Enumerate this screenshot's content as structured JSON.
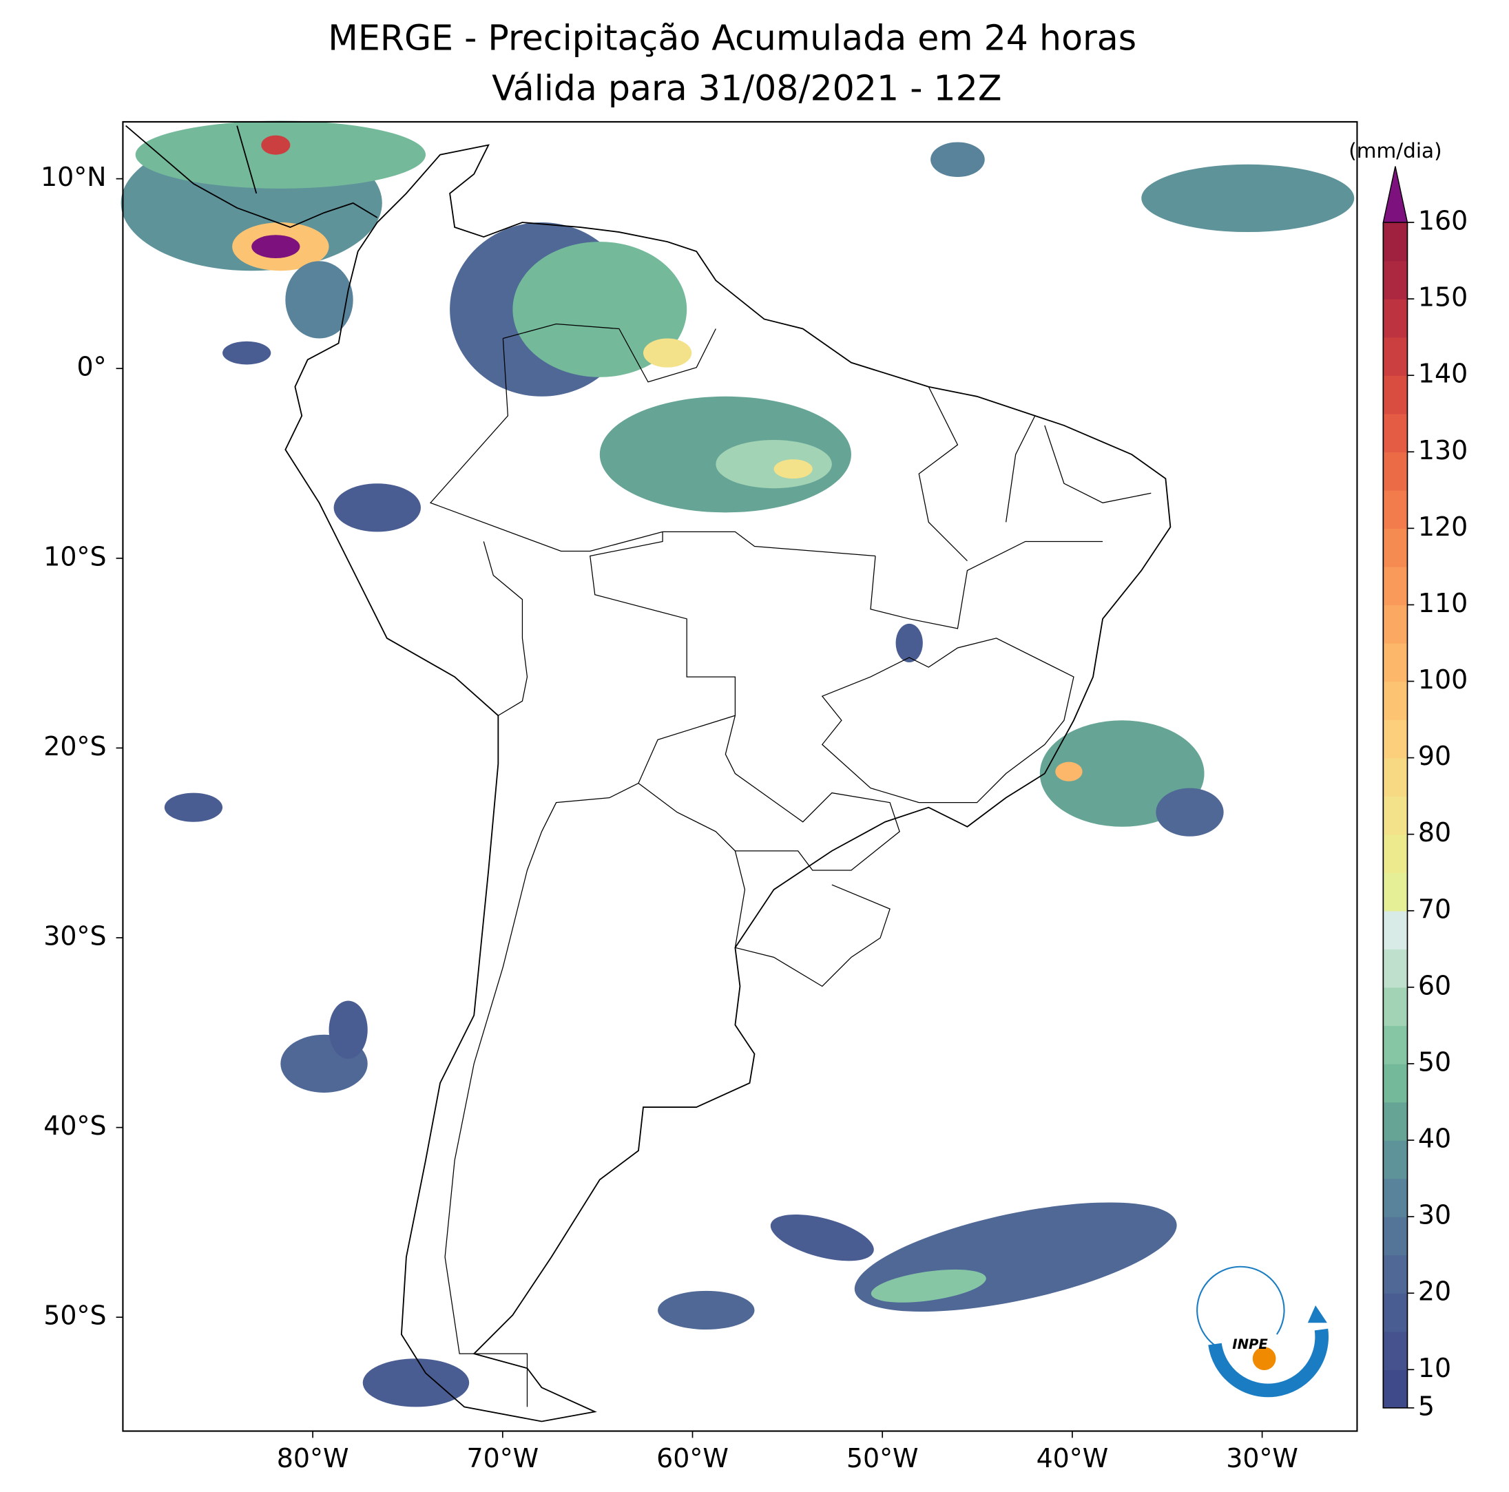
{
  "chart_data": {
    "type": "map",
    "title": "MERGE - Precipitação Acumulada em 24 horas",
    "subtitle": "Válida para 31/08/2021 - 12Z",
    "xlim": [
      -90,
      -25
    ],
    "xticks": [
      {
        "value": -80,
        "label": "80°W"
      },
      {
        "value": -70,
        "label": "70°W"
      },
      {
        "value": -60,
        "label": "60°W"
      },
      {
        "value": -50,
        "label": "50°W"
      },
      {
        "value": -40,
        "label": "40°W"
      },
      {
        "value": -30,
        "label": "30°W"
      }
    ],
    "ylim": [
      -56,
      13
    ],
    "yticks": [
      {
        "value": 10,
        "label": "10°N"
      },
      {
        "value": 0,
        "label": "0°"
      },
      {
        "value": -10,
        "label": "10°S"
      },
      {
        "value": -20,
        "label": "20°S"
      },
      {
        "value": -30,
        "label": "30°S"
      },
      {
        "value": -40,
        "label": "40°S"
      },
      {
        "value": -50,
        "label": "50°S"
      }
    ],
    "colorbar": {
      "label": "(mm/dia)",
      "lim": [
        5,
        160
      ],
      "ticks": [
        5,
        10,
        20,
        30,
        40,
        50,
        60,
        70,
        80,
        90,
        100,
        110,
        120,
        130,
        140,
        150,
        160
      ],
      "colors": [
        "#3f4a8a",
        "#45528e",
        "#4a5d93",
        "#4f6896",
        "#547598",
        "#58839a",
        "#5e939a",
        "#66a595",
        "#73b99a",
        "#86c6a5",
        "#a2d3b5",
        "#bfe0cd",
        "#d9ebe6",
        "#e4ef96",
        "#ede98d",
        "#f3e28a",
        "#f8d983",
        "#fbcf7b",
        "#fcc373",
        "#fcb76b",
        "#fba962",
        "#f99a5a",
        "#f68b52",
        "#f27c4c",
        "#ec6b47",
        "#e45c43",
        "#d94d41",
        "#cc3f40",
        "#bd3340",
        "#ac2841",
        "#a0203f"
      ],
      "extend_color": "#7d117d"
    }
  },
  "logo": {
    "text": "INPE"
  }
}
